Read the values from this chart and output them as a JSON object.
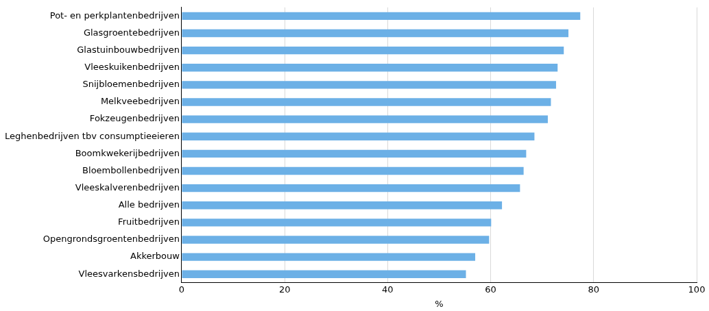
{
  "chart_data": {
    "type": "bar",
    "orientation": "horizontal",
    "xlabel": "%",
    "categories": [
      "Pot- en perkplantenbedrijven",
      "Glasgroentebedrijven",
      "Glastuinbouwbedrijven",
      "Vleeskuikenbedrijven",
      "Snijbloemenbedrijven",
      "Melkveebedrijven",
      "Fokzeugenbedrijven",
      "Leghenbedrijven tbv consumptieeieren",
      "Boomkwekerijbedrijven",
      "Bloembollenbedrijven",
      "Vleeskalverenbedrijven",
      "Alle bedrijven",
      "Fruitbedrijven",
      "Opengrondsgroentenbedrijven",
      "Akkerbouw",
      "Vleesvarkensbedrijven"
    ],
    "values": [
      77.4,
      75.1,
      74.2,
      73.0,
      72.7,
      71.7,
      71.1,
      68.5,
      66.9,
      66.4,
      65.7,
      62.2,
      60.1,
      59.7,
      57.0,
      55.2
    ],
    "color": "#6cb0e6",
    "xlim": [
      0,
      100
    ],
    "xticks": [
      0,
      20,
      40,
      60,
      80,
      100
    ],
    "grid": "x",
    "legend": false
  }
}
